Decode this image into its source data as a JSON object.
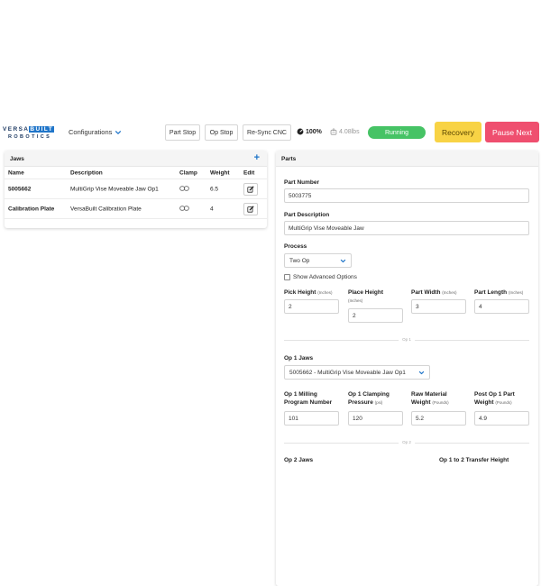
{
  "brand": {
    "line1_a": "VERSA",
    "line1_b": "BUILT",
    "line2": "ROBOTICS"
  },
  "nav": {
    "configurations": "Configurations"
  },
  "toolbar": {
    "part_stop": "Part Stop",
    "op_stop": "Op Stop",
    "resync": "Re-Sync CNC",
    "battery": "100%",
    "weight": "4.08lbs",
    "status": "Running",
    "recovery": "Recovery",
    "pause_next": "Pause Next"
  },
  "jaws": {
    "title": "Jaws",
    "columns": {
      "name": "Name",
      "description": "Description",
      "clamp": "Clamp",
      "weight": "Weight",
      "edit": "Edit"
    },
    "rows": [
      {
        "name": "5005662",
        "description": "MultiGrip Vise Moveable Jaw Op1",
        "weight": "6.5"
      },
      {
        "name": "Calibration Plate",
        "description": "VersaBuilt Calibration Plate",
        "weight": "4"
      }
    ]
  },
  "parts": {
    "title": "Parts",
    "part_number_label": "Part Number",
    "part_number": "5003775",
    "part_desc_label": "Part Description",
    "part_desc": "MultiGrip Vise Moveable Jaw",
    "process_label": "Process",
    "process": "Two Op",
    "advanced": "Show Advanced Options",
    "pick_height_label": "Pick Height",
    "place_height_label": "Place Height",
    "part_width_label": "Part Width",
    "part_length_label": "Part Length",
    "unit_inches": "(Inches)",
    "pick_height": "2",
    "place_height": "2",
    "part_width": "3",
    "part_length": "4",
    "op1_divider": "Op 1",
    "op1_jaws_label": "Op 1 Jaws",
    "op1_jaws": "5005662 - MultiGrip Vise Moveable Jaw Op1",
    "op1_mill_label_1": "Op 1 Milling",
    "op1_mill_label_2": "Program Number",
    "op1_clamp_label_1": "Op 1 Clamping",
    "op1_clamp_label_2": "Pressure",
    "unit_psi": "(psi)",
    "raw_weight_label_1": "Raw Material",
    "raw_weight_label_2": "Weight",
    "unit_pounds": "(Pounds)",
    "post_op1_label_1": "Post Op 1 Part",
    "post_op1_label_2": "Weight",
    "op1_program": "101",
    "op1_pressure": "120",
    "raw_weight": "5.2",
    "post_op1_weight": "4.9",
    "op2_divider": "Op 2",
    "op2_jaws_label": "Op 2 Jaws",
    "transfer_label": "Op 1 to 2 Transfer Height"
  }
}
